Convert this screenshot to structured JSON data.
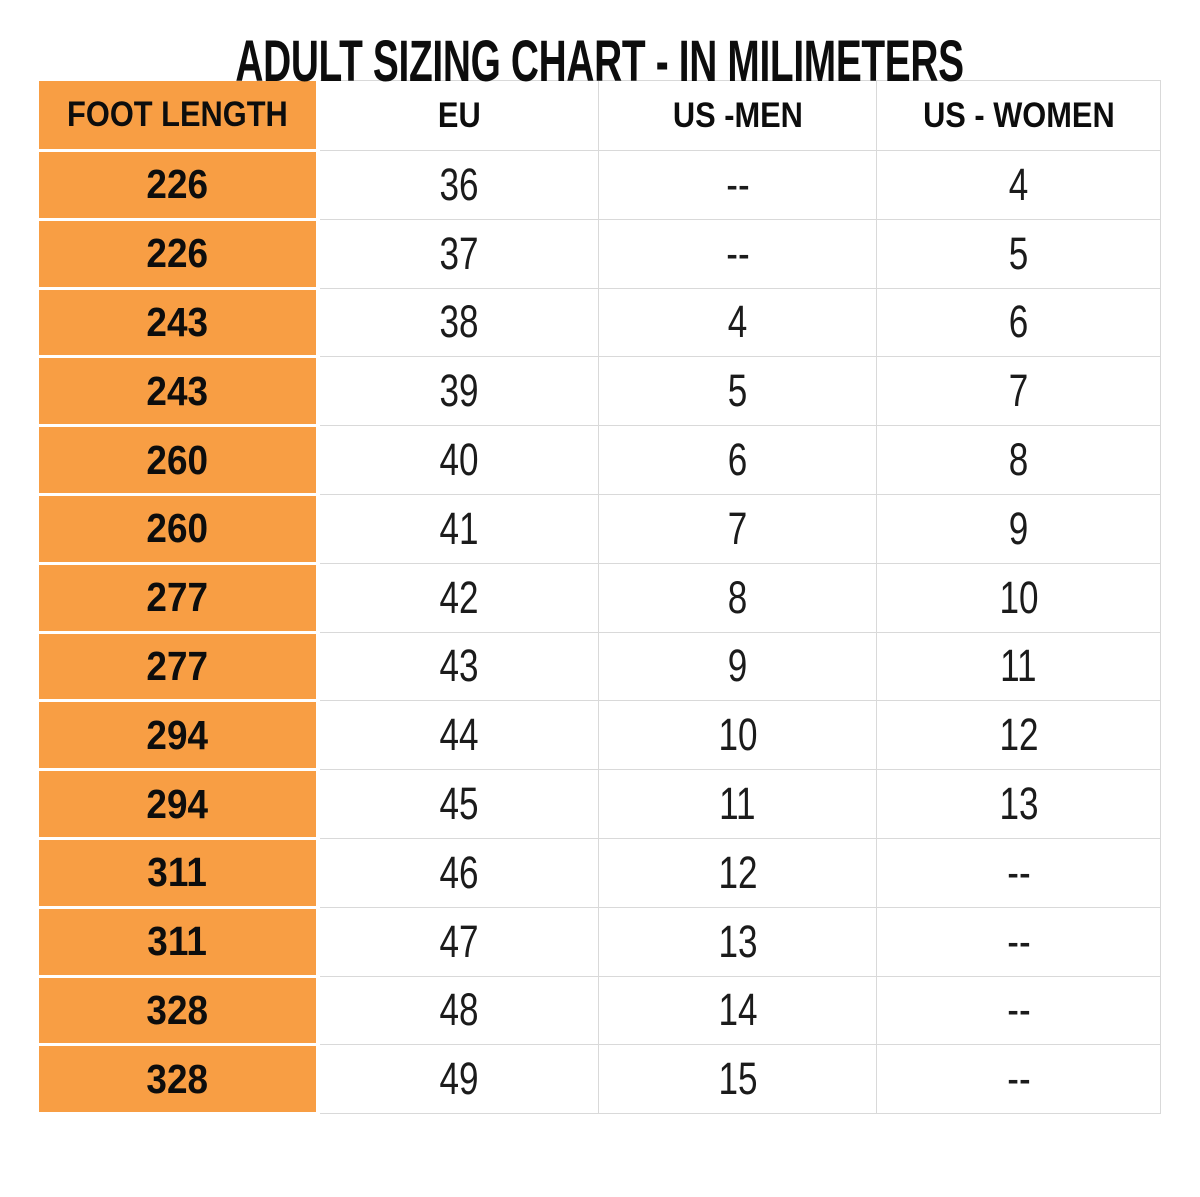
{
  "title": "ADULT SIZING CHART - IN MILIMETERS",
  "table": {
    "accent_color": "#F89E44",
    "grid_color": "#d9d9d9",
    "columns": [
      "FOOT LENGTH",
      "EU",
      "US -MEN",
      "US - WOMEN"
    ],
    "rows": [
      [
        "226",
        "36",
        "--",
        "4"
      ],
      [
        "226",
        "37",
        "--",
        "5"
      ],
      [
        "243",
        "38",
        "4",
        "6"
      ],
      [
        "243",
        "39",
        "5",
        "7"
      ],
      [
        "260",
        "40",
        "6",
        "8"
      ],
      [
        "260",
        "41",
        "7",
        "9"
      ],
      [
        "277",
        "42",
        "8",
        "10"
      ],
      [
        "277",
        "43",
        "9",
        "11"
      ],
      [
        "294",
        "44",
        "10",
        "12"
      ],
      [
        "294",
        "45",
        "11",
        "13"
      ],
      [
        "311",
        "46",
        "12",
        "--"
      ],
      [
        "311",
        "47",
        "13",
        "--"
      ],
      [
        "328",
        "48",
        "14",
        "--"
      ],
      [
        "328",
        "49",
        "15",
        "--"
      ]
    ]
  },
  "chart_data": {
    "type": "table",
    "title": "ADULT SIZING CHART - IN MILIMETERS",
    "columns": [
      "FOOT LENGTH",
      "EU",
      "US -MEN",
      "US - WOMEN"
    ],
    "rows": [
      [
        "226",
        "36",
        "--",
        "4"
      ],
      [
        "226",
        "37",
        "--",
        "5"
      ],
      [
        "243",
        "38",
        "4",
        "6"
      ],
      [
        "243",
        "39",
        "5",
        "7"
      ],
      [
        "260",
        "40",
        "6",
        "8"
      ],
      [
        "260",
        "41",
        "7",
        "9"
      ],
      [
        "277",
        "42",
        "8",
        "10"
      ],
      [
        "277",
        "43",
        "9",
        "11"
      ],
      [
        "294",
        "44",
        "10",
        "12"
      ],
      [
        "294",
        "45",
        "11",
        "13"
      ],
      [
        "311",
        "46",
        "12",
        "--"
      ],
      [
        "311",
        "47",
        "13",
        "--"
      ],
      [
        "328",
        "48",
        "14",
        "--"
      ],
      [
        "328",
        "49",
        "15",
        "--"
      ]
    ]
  }
}
